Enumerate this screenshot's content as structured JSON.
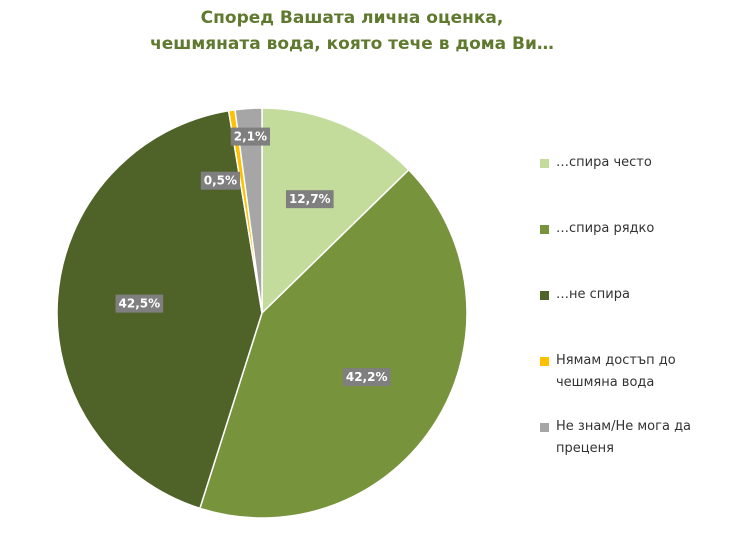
{
  "chart_data": {
    "type": "pie",
    "title": [
      "Според Вашата лична оценка,",
      "чешмяната вода, която тече в дома Ви…"
    ],
    "categories": [
      "…спира често",
      "…спира рядко",
      "…не спира",
      "Нямам достъп до чешмяна вода",
      "Не знам/Не мога да преценя"
    ],
    "values": [
      12.7,
      42.2,
      42.5,
      0.5,
      2.1
    ],
    "value_labels": [
      "12,7%",
      "42,2%",
      "42,5%",
      "0,5%",
      "2,1%"
    ],
    "colors": [
      "#c3dc9c",
      "#77933c",
      "#4f6228",
      "#ffc000",
      "#a6a6a6"
    ],
    "legend": "right"
  }
}
